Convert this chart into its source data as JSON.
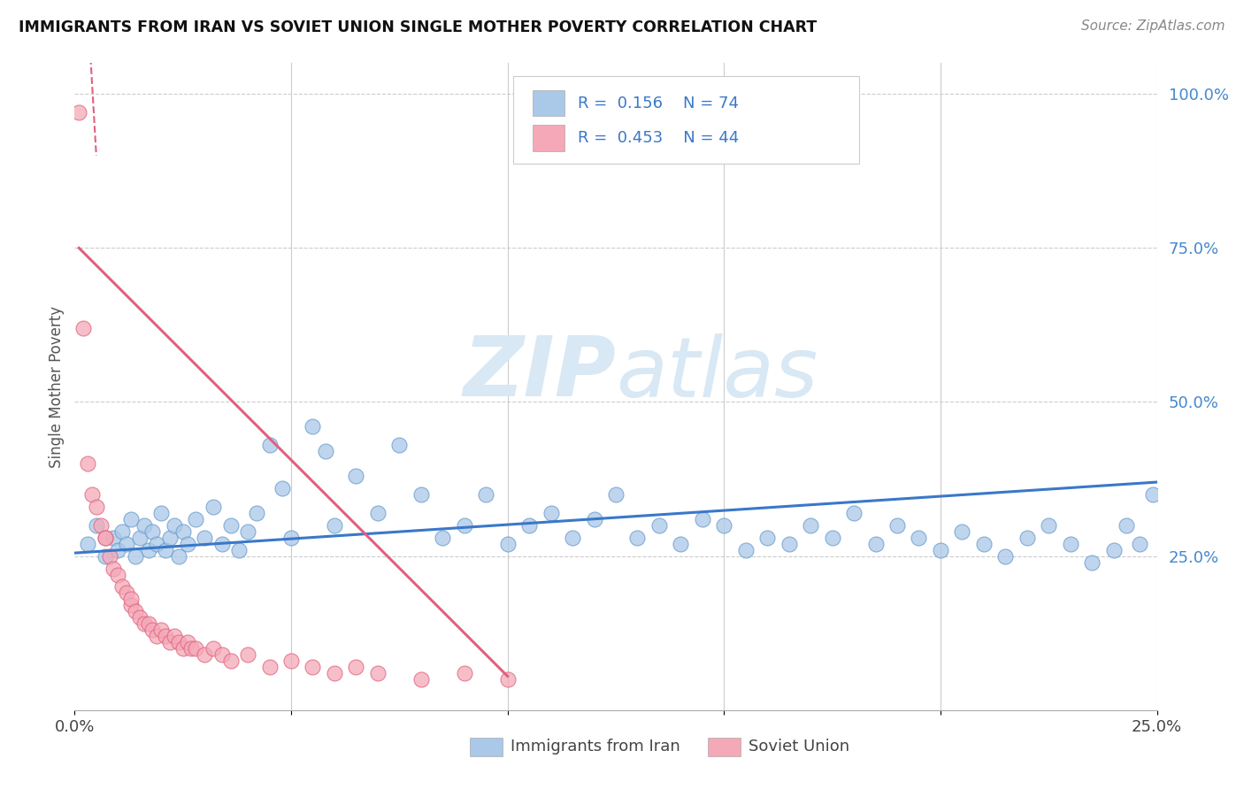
{
  "title": "IMMIGRANTS FROM IRAN VS SOVIET UNION SINGLE MOTHER POVERTY CORRELATION CHART",
  "source": "Source: ZipAtlas.com",
  "ylabel": "Single Mother Poverty",
  "xlim": [
    0.0,
    0.25
  ],
  "ylim": [
    0.0,
    1.05
  ],
  "iran_R": 0.156,
  "iran_N": 74,
  "soviet_R": 0.453,
  "soviet_N": 44,
  "iran_color": "#aac8e8",
  "iran_edge_color": "#6699cc",
  "soviet_color": "#f4a8b8",
  "soviet_edge_color": "#e0607a",
  "trend_iran_color": "#3a78c9",
  "trend_soviet_color": "#e06080",
  "watermark_color": "#d8e8f4",
  "iran_x": [
    0.003,
    0.005,
    0.007,
    0.009,
    0.01,
    0.011,
    0.012,
    0.013,
    0.014,
    0.015,
    0.016,
    0.017,
    0.018,
    0.019,
    0.02,
    0.021,
    0.022,
    0.023,
    0.024,
    0.025,
    0.026,
    0.028,
    0.03,
    0.032,
    0.034,
    0.036,
    0.038,
    0.04,
    0.042,
    0.045,
    0.048,
    0.05,
    0.055,
    0.058,
    0.06,
    0.065,
    0.07,
    0.075,
    0.08,
    0.085,
    0.09,
    0.095,
    0.1,
    0.105,
    0.11,
    0.115,
    0.12,
    0.125,
    0.13,
    0.135,
    0.14,
    0.145,
    0.15,
    0.155,
    0.16,
    0.165,
    0.17,
    0.175,
    0.18,
    0.185,
    0.19,
    0.195,
    0.2,
    0.205,
    0.21,
    0.215,
    0.22,
    0.225,
    0.23,
    0.235,
    0.24,
    0.243,
    0.246,
    0.249
  ],
  "iran_y": [
    0.27,
    0.3,
    0.25,
    0.28,
    0.26,
    0.29,
    0.27,
    0.31,
    0.25,
    0.28,
    0.3,
    0.26,
    0.29,
    0.27,
    0.32,
    0.26,
    0.28,
    0.3,
    0.25,
    0.29,
    0.27,
    0.31,
    0.28,
    0.33,
    0.27,
    0.3,
    0.26,
    0.29,
    0.32,
    0.43,
    0.36,
    0.28,
    0.46,
    0.42,
    0.3,
    0.38,
    0.32,
    0.43,
    0.35,
    0.28,
    0.3,
    0.35,
    0.27,
    0.3,
    0.32,
    0.28,
    0.31,
    0.35,
    0.28,
    0.3,
    0.27,
    0.31,
    0.3,
    0.26,
    0.28,
    0.27,
    0.3,
    0.28,
    0.32,
    0.27,
    0.3,
    0.28,
    0.26,
    0.29,
    0.27,
    0.25,
    0.28,
    0.3,
    0.27,
    0.24,
    0.26,
    0.3,
    0.27,
    0.35
  ],
  "soviet_x": [
    0.001,
    0.002,
    0.003,
    0.004,
    0.005,
    0.006,
    0.007,
    0.007,
    0.008,
    0.009,
    0.01,
    0.011,
    0.012,
    0.013,
    0.013,
    0.014,
    0.015,
    0.016,
    0.017,
    0.018,
    0.019,
    0.02,
    0.021,
    0.022,
    0.023,
    0.024,
    0.025,
    0.026,
    0.027,
    0.028,
    0.03,
    0.032,
    0.034,
    0.036,
    0.04,
    0.045,
    0.05,
    0.055,
    0.06,
    0.065,
    0.07,
    0.08,
    0.09,
    0.1
  ],
  "soviet_y": [
    0.97,
    0.62,
    0.4,
    0.35,
    0.33,
    0.3,
    0.28,
    0.28,
    0.25,
    0.23,
    0.22,
    0.2,
    0.19,
    0.17,
    0.18,
    0.16,
    0.15,
    0.14,
    0.14,
    0.13,
    0.12,
    0.13,
    0.12,
    0.11,
    0.12,
    0.11,
    0.1,
    0.11,
    0.1,
    0.1,
    0.09,
    0.1,
    0.09,
    0.08,
    0.09,
    0.07,
    0.08,
    0.07,
    0.06,
    0.07,
    0.06,
    0.05,
    0.06,
    0.05
  ],
  "iran_trend_x": [
    0.0,
    0.25
  ],
  "iran_trend_y": [
    0.255,
    0.37
  ],
  "soviet_trend_x": [
    0.001,
    0.1
  ],
  "soviet_trend_y": [
    0.75,
    0.055
  ]
}
